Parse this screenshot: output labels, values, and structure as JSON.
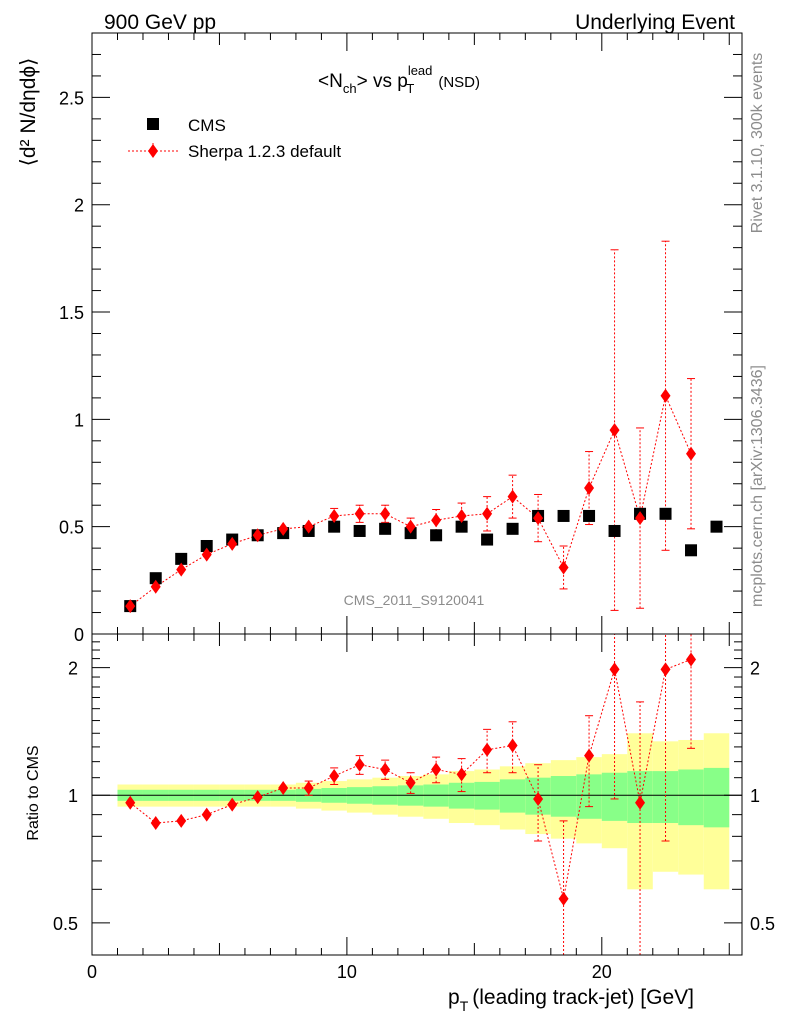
{
  "header": {
    "left": "900 GeV pp",
    "right": "Underlying Event"
  },
  "side_labels": {
    "rivet": "Rivet 3.1.10,  300k events",
    "mcplots": "mcplots.cern.ch [arXiv:1306.3436]"
  },
  "watermark": "CMS_2011_S9120041",
  "title": {
    "n": "N",
    "n_sub": "ch",
    "vs": "> vs p",
    "p_sup": "lead",
    "p_sub": "T",
    "tail": "(NSD)"
  },
  "legend": {
    "cms": "CMS",
    "sherpa": "Sherpa 1.2.3 default"
  },
  "axes": {
    "xlabel_p": "p",
    "xlabel_sub": "T",
    "xlabel_tail": "(leading track-jet) [GeV]",
    "ylabel_main": "⟨d² N/dηdϕ⟩",
    "ylabel_ratio": "Ratio to CMS"
  },
  "colors": {
    "cms": "#000000",
    "sherpa": "#ff0000",
    "band_inner": "#88ff88",
    "band_outer": "#ffff99"
  },
  "chart_data": [
    {
      "type": "scatter",
      "panel": "main",
      "x": [
        1.5,
        2.5,
        3.5,
        4.5,
        5.5,
        6.5,
        7.5,
        8.5,
        9.5,
        10.5,
        11.5,
        12.5,
        13.5,
        14.5,
        15.5,
        16.5,
        17.5,
        18.5,
        19.5,
        20.5,
        21.5,
        22.5,
        23.5,
        24.5
      ],
      "series": [
        {
          "name": "CMS",
          "values": [
            0.13,
            0.26,
            0.35,
            0.41,
            0.44,
            0.46,
            0.47,
            0.48,
            0.5,
            0.48,
            0.49,
            0.47,
            0.46,
            0.5,
            0.44,
            0.49,
            0.55,
            0.55,
            0.55,
            0.48,
            0.56,
            0.56,
            0.39,
            0.5
          ]
        },
        {
          "name": "Sherpa 1.2.3 default",
          "values": [
            0.13,
            0.22,
            0.3,
            0.37,
            0.42,
            0.46,
            0.49,
            0.5,
            0.55,
            0.56,
            0.56,
            0.5,
            0.53,
            0.55,
            0.56,
            0.64,
            0.54,
            0.31,
            0.68,
            0.95,
            0.54,
            1.11,
            0.84,
            null
          ],
          "errors": [
            0.01,
            0.01,
            0.015,
            0.015,
            0.02,
            0.02,
            0.02,
            0.03,
            0.035,
            0.04,
            0.04,
            0.04,
            0.05,
            0.06,
            0.08,
            0.1,
            0.11,
            0.1,
            0.17,
            0.84,
            0.42,
            0.72,
            0.35,
            null
          ]
        }
      ],
      "xlim": [
        0,
        25.5
      ],
      "ylim": [
        0,
        2.8
      ],
      "y_ticks": [
        0,
        0.5,
        1,
        1.5,
        2,
        2.5
      ],
      "x_ticks": [
        0,
        10,
        20
      ]
    },
    {
      "type": "scatter",
      "panel": "ratio",
      "x": [
        1.5,
        2.5,
        3.5,
        4.5,
        5.5,
        6.5,
        7.5,
        8.5,
        9.5,
        10.5,
        11.5,
        12.5,
        13.5,
        14.5,
        15.5,
        16.5,
        17.5,
        18.5,
        19.5,
        20.5,
        21.5,
        22.5,
        23.5
      ],
      "series": [
        {
          "name": "Sherpa 1.2.3 default",
          "values": [
            0.96,
            0.86,
            0.87,
            0.9,
            0.95,
            0.99,
            1.04,
            1.04,
            1.11,
            1.18,
            1.15,
            1.07,
            1.15,
            1.12,
            1.28,
            1.31,
            0.98,
            0.57,
            1.24,
            1.98,
            0.96,
            1.98,
            2.09
          ],
          "errors": [
            0.02,
            0.02,
            0.02,
            0.02,
            0.02,
            0.03,
            0.03,
            0.04,
            0.05,
            0.06,
            0.06,
            0.06,
            0.08,
            0.1,
            0.15,
            0.18,
            0.2,
            0.3,
            0.3,
            1.0,
            0.7,
            1.2,
            0.8
          ]
        }
      ],
      "band_edges": [
        1,
        2,
        3,
        4,
        5,
        6,
        7,
        8,
        9,
        10,
        11,
        12,
        13,
        14,
        15,
        16,
        17,
        18,
        19,
        20,
        21,
        22,
        23,
        24,
        25
      ],
      "band_inner": [
        0.03,
        0.03,
        0.03,
        0.03,
        0.03,
        0.03,
        0.03,
        0.035,
        0.04,
        0.045,
        0.05,
        0.055,
        0.06,
        0.07,
        0.075,
        0.09,
        0.1,
        0.11,
        0.12,
        0.13,
        0.14,
        0.14,
        0.15,
        0.16
      ],
      "band_outer": [
        0.06,
        0.06,
        0.06,
        0.06,
        0.06,
        0.06,
        0.06,
        0.07,
        0.08,
        0.09,
        0.1,
        0.11,
        0.12,
        0.14,
        0.15,
        0.17,
        0.19,
        0.21,
        0.23,
        0.25,
        0.4,
        0.34,
        0.35,
        0.4
      ],
      "xlim": [
        0,
        25.5
      ],
      "ylim": [
        0.42,
        2.4
      ],
      "y_ticks": [
        0.5,
        1,
        2
      ],
      "x_ticks": [
        0,
        10,
        20
      ]
    }
  ]
}
